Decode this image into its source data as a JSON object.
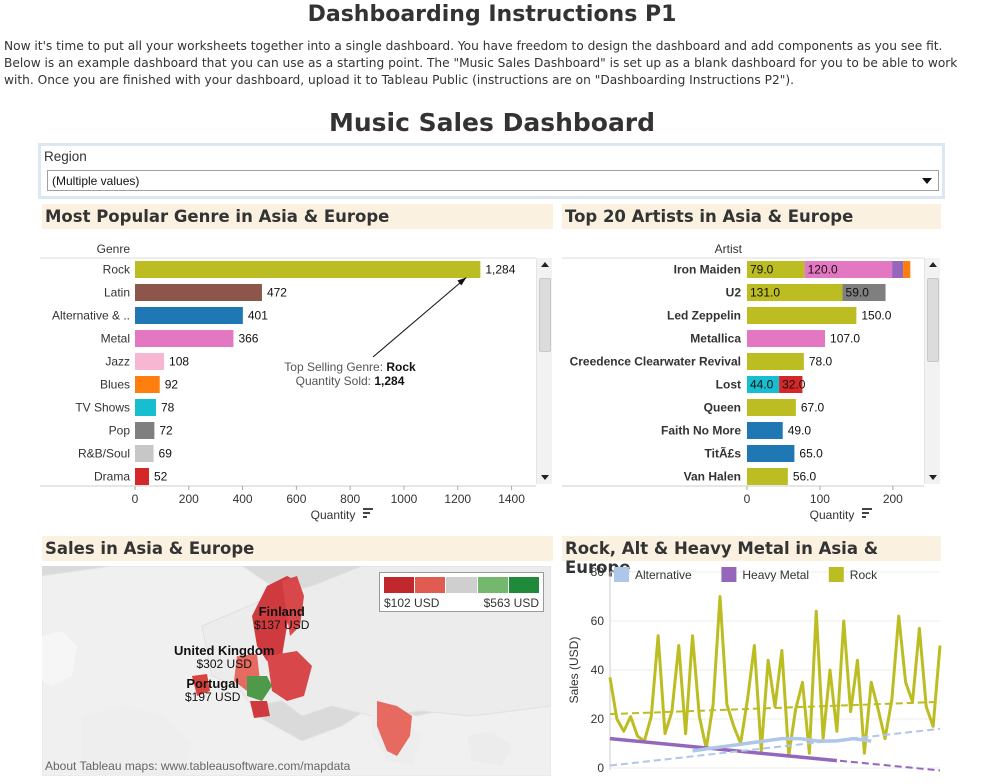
{
  "page": {
    "title": "Dashboarding Instructions P1",
    "intro": "Now it's time to put all your worksheets together into a single dashboard. You have freedom to design the dashboard and add components as you see fit. Below is an example dashboard that you can use as a starting point. The \"Music Sales Dashboard\" is set up as a blank dashboard for you to be able to work with. Once you are finished with your dashboard, upload it to Tableau Public (instructions are on \"Dashboarding Instructions P2\")."
  },
  "dashboard": {
    "title": "Music Sales Dashboard",
    "filter": {
      "label": "Region",
      "value": "(Multiple values)"
    }
  },
  "sections": {
    "genre": "Most Popular Genre in Asia & Europe",
    "artists": "Top 20 Artists in Asia & Europe",
    "map": "Sales in Asia & Europe",
    "line": "Rock, Alt & Heavy Metal in Asia & Europe"
  },
  "colors": {
    "rock": "#bcbd22",
    "latin": "#8c564b",
    "alternative": "#1f77b4",
    "metal": "#e377c2",
    "jazz": "#f7b6d2",
    "blues": "#ff7f0e",
    "tvshows": "#17becf",
    "pop": "#7f7f7f",
    "rnb": "#c7c7c7",
    "drama": "#d62728",
    "heavy_metal": "#9467bd",
    "alt_line": "#aec7e8"
  },
  "chart_data": [
    {
      "type": "bar",
      "orientation": "horizontal",
      "dim_header": "Genre",
      "xlabel": "Quantity",
      "xlim": [
        0,
        1450
      ],
      "x_ticks": [
        "0",
        "200",
        "400",
        "600",
        "800",
        "1000",
        "1200",
        "1400"
      ],
      "categories": [
        "Rock",
        "Latin",
        "Alternative & ..",
        "Metal",
        "Jazz",
        "Blues",
        "TV Shows",
        "Pop",
        "R&B/Soul",
        "Drama"
      ],
      "values": [
        1284,
        472,
        401,
        366,
        108,
        92,
        78,
        72,
        69,
        52
      ],
      "value_labels": [
        "1,284",
        "472",
        "401",
        "366",
        "108",
        "92",
        "78",
        "72",
        "69",
        "52"
      ],
      "bar_colors": [
        "#bcbd22",
        "#8c564b",
        "#1f77b4",
        "#e377c2",
        "#f7b6d2",
        "#ff7f0e",
        "#17becf",
        "#7f7f7f",
        "#c7c7c7",
        "#d62728"
      ],
      "annotation": {
        "line1_prefix": "Top Selling Genre: ",
        "line1_value": "Rock",
        "line2_prefix": "Quantity Sold: ",
        "line2_value": "1,284"
      }
    },
    {
      "type": "bar",
      "orientation": "horizontal",
      "stacked": true,
      "dim_header": "Artist",
      "xlabel": "Quantity",
      "xlim": [
        0,
        240
      ],
      "x_ticks": [
        "0",
        "100",
        "200"
      ],
      "categories": [
        "Iron Maiden",
        "U2",
        "Led Zeppelin",
        "Metallica",
        "Creedence Clearwater Revival",
        "Lost",
        "Queen",
        "Faith No More",
        "TitÃ£s",
        "Van Halen"
      ],
      "rows": [
        [
          {
            "v": 79,
            "c": "#bcbd22",
            "t": "79.0"
          },
          {
            "v": 120,
            "c": "#e377c2",
            "t": "120.0"
          },
          {
            "v": 15,
            "c": "#9467bd",
            "t": ""
          },
          {
            "v": 10,
            "c": "#ff7f0e",
            "t": ""
          }
        ],
        [
          {
            "v": 131,
            "c": "#bcbd22",
            "t": "131.0"
          },
          {
            "v": 59,
            "c": "#7f7f7f",
            "t": "59.0"
          }
        ],
        [
          {
            "v": 150,
            "c": "#bcbd22",
            "t": "150.0"
          }
        ],
        [
          {
            "v": 107,
            "c": "#e377c2",
            "t": "107.0"
          }
        ],
        [
          {
            "v": 78,
            "c": "#bcbd22",
            "t": "78.0"
          }
        ],
        [
          {
            "v": 44,
            "c": "#17becf",
            "t": "44.0"
          },
          {
            "v": 32,
            "c": "#d62728",
            "t": "32.0"
          }
        ],
        [
          {
            "v": 67,
            "c": "#bcbd22",
            "t": "67.0"
          }
        ],
        [
          {
            "v": 49,
            "c": "#1f77b4",
            "t": "49.0"
          }
        ],
        [
          {
            "v": 65,
            "c": "#1f77b4",
            "t": "65.0"
          }
        ],
        [
          {
            "v": 56,
            "c": "#bcbd22",
            "t": "56.0"
          }
        ]
      ]
    },
    {
      "type": "map",
      "legend": {
        "min": "$102 USD",
        "max": "$563 USD",
        "swatches": [
          "#c0282d",
          "#e05c50",
          "#cfcfcf",
          "#74b86e",
          "#1f8a3a"
        ]
      },
      "labels": [
        {
          "name": "Finland",
          "value": "$137 USD"
        },
        {
          "name": "United Kingdom",
          "value": "$302 USD"
        },
        {
          "name": "Portugal",
          "value": "$197 USD"
        }
      ],
      "attribution": "About Tableau maps: www.tableausoftware.com/mapdata"
    },
    {
      "type": "line",
      "ylabel": "Sales (USD)",
      "ylim": [
        0,
        80
      ],
      "y_ticks": [
        "0",
        "20",
        "40",
        "60",
        "80"
      ],
      "legend": [
        {
          "name": "Alternative",
          "color": "#aec7e8"
        },
        {
          "name": "Heavy Metal",
          "color": "#9467bd"
        },
        {
          "name": "Rock",
          "color": "#bcbd22"
        }
      ],
      "series": [
        {
          "name": "Rock",
          "values": [
            37,
            20,
            15,
            21,
            13,
            11,
            21,
            54,
            14,
            23,
            50,
            14,
            54,
            21,
            8,
            26,
            70,
            26,
            17,
            10,
            28,
            50,
            7,
            44,
            25,
            48,
            5,
            24,
            35,
            6,
            64,
            12,
            40,
            15,
            60,
            23,
            44,
            6,
            35,
            24,
            12,
            28,
            62,
            35,
            27,
            57,
            25,
            17,
            50
          ],
          "trend": [
            22,
            27
          ]
        },
        {
          "name": "Heavy Metal",
          "values": [
            12,
            3
          ],
          "trend": [
            12,
            -1
          ],
          "x_range": [
            0,
            33
          ],
          "trend_x": [
            0,
            48
          ]
        },
        {
          "name": "Alternative",
          "values": [
            7,
            8,
            9,
            10,
            11,
            12,
            12,
            11,
            11,
            12,
            11
          ],
          "x_range": [
            12,
            38
          ],
          "trend": [
            1,
            16
          ],
          "trend_x": [
            0,
            48
          ]
        }
      ]
    }
  ]
}
